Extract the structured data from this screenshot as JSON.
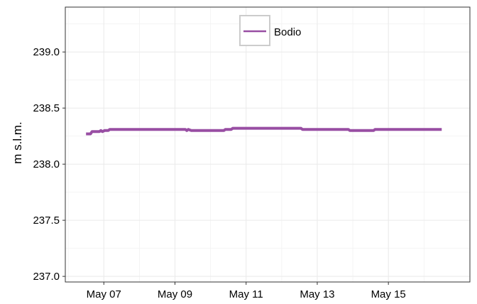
{
  "chart_data": {
    "type": "line",
    "title": "",
    "xlabel": "",
    "ylabel": "m s.l.m.",
    "x_axis": {
      "type": "date",
      "range": [
        "2022-05-05T22:00",
        "2022-05-17T07:00"
      ],
      "ticks": [
        {
          "date": "2022-05-07",
          "label": "May 07"
        },
        {
          "date": "2022-05-09",
          "label": "May 09"
        },
        {
          "date": "2022-05-11",
          "label": "May 11"
        },
        {
          "date": "2022-05-13",
          "label": "May 13"
        },
        {
          "date": "2022-05-15",
          "label": "May 15"
        }
      ]
    },
    "y_axis": {
      "range": [
        236.95,
        239.4
      ],
      "ticks": [
        237.0,
        237.5,
        238.0,
        238.5,
        239.0
      ],
      "tick_labels": [
        "237.0",
        "237.5",
        "238.0",
        "238.5",
        "239.0"
      ]
    },
    "grid": true,
    "legend": {
      "position": "top-center",
      "entries": [
        "Bodio"
      ]
    },
    "series": [
      {
        "name": "Bodio",
        "color": "#984ea3",
        "points": [
          {
            "x": "2022-05-06T12:00",
            "y": 238.27
          },
          {
            "x": "2022-05-06T15:00",
            "y": 238.27
          },
          {
            "x": "2022-05-06T16:00",
            "y": 238.29
          },
          {
            "x": "2022-05-06T21:00",
            "y": 238.29
          },
          {
            "x": "2022-05-06T22:00",
            "y": 238.3
          },
          {
            "x": "2022-05-06T23:00",
            "y": 238.29
          },
          {
            "x": "2022-05-07T00:30",
            "y": 238.3
          },
          {
            "x": "2022-05-07T03:00",
            "y": 238.3
          },
          {
            "x": "2022-05-07T04:00",
            "y": 238.31
          },
          {
            "x": "2022-05-09T07:00",
            "y": 238.31
          },
          {
            "x": "2022-05-09T08:00",
            "y": 238.3
          },
          {
            "x": "2022-05-09T09:00",
            "y": 238.31
          },
          {
            "x": "2022-05-09T11:00",
            "y": 238.3
          },
          {
            "x": "2022-05-10T09:00",
            "y": 238.3
          },
          {
            "x": "2022-05-10T10:00",
            "y": 238.31
          },
          {
            "x": "2022-05-10T14:00",
            "y": 238.31
          },
          {
            "x": "2022-05-10T15:00",
            "y": 238.32
          },
          {
            "x": "2022-05-12T13:00",
            "y": 238.32
          },
          {
            "x": "2022-05-12T14:00",
            "y": 238.31
          },
          {
            "x": "2022-05-13T21:00",
            "y": 238.31
          },
          {
            "x": "2022-05-13T22:00",
            "y": 238.3
          },
          {
            "x": "2022-05-14T14:00",
            "y": 238.3
          },
          {
            "x": "2022-05-14T15:00",
            "y": 238.31
          },
          {
            "x": "2022-05-16T12:00",
            "y": 238.31
          }
        ]
      }
    ]
  }
}
